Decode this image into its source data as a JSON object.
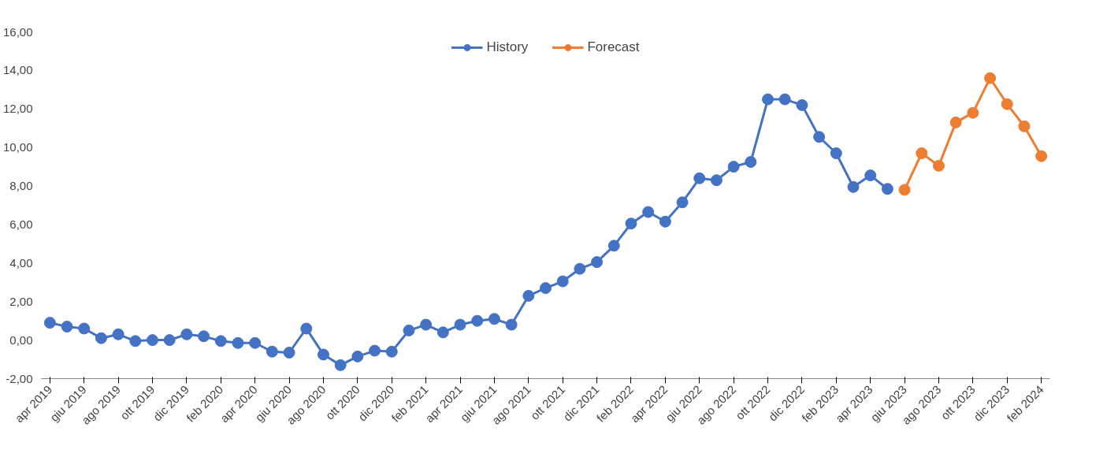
{
  "chart_data": {
    "type": "line",
    "categories": [
      "apr 2019",
      null,
      "giu 2019",
      null,
      "ago 2019",
      null,
      "ott 2019",
      null,
      "dic 2019",
      null,
      "feb 2020",
      null,
      "apr 2020",
      null,
      "giu 2020",
      null,
      "ago 2020",
      null,
      "ott 2020",
      null,
      "dic 2020",
      null,
      "feb 2021",
      null,
      "apr 2021",
      null,
      "giu 2021",
      null,
      "ago 2021",
      null,
      "ott 2021",
      null,
      "dic 2021",
      null,
      "feb 2022",
      null,
      "apr 2022",
      null,
      "giu 2022",
      null,
      "ago 2022",
      null,
      "ott 2022",
      null,
      "dic 2022",
      null,
      "feb 2023",
      null,
      "apr 2023",
      null,
      "giu 2023",
      null,
      "ago 2023",
      null,
      "ott 2023",
      null,
      "dic 2023",
      null,
      "feb 2024"
    ],
    "series": [
      {
        "name": "History",
        "color": "#4472c4",
        "values": [
          0.9,
          0.7,
          0.6,
          0.1,
          0.3,
          -0.05,
          0.0,
          0.0,
          0.3,
          0.2,
          -0.05,
          -0.15,
          -0.15,
          -0.6,
          -0.65,
          0.6,
          -0.75,
          -1.3,
          -0.85,
          -0.55,
          -0.6,
          0.5,
          0.8,
          0.4,
          0.8,
          1.0,
          1.1,
          0.8,
          2.3,
          2.7,
          3.05,
          3.7,
          4.05,
          4.9,
          6.05,
          6.65,
          6.15,
          7.15,
          8.4,
          8.3,
          9.0,
          9.25,
          12.5,
          12.5,
          12.2,
          10.55,
          9.7,
          7.95,
          8.55,
          7.85,
          null,
          null,
          null,
          null,
          null,
          null,
          null,
          null,
          null
        ]
      },
      {
        "name": "Forecast",
        "color": "#ed7d31",
        "values": [
          null,
          null,
          null,
          null,
          null,
          null,
          null,
          null,
          null,
          null,
          null,
          null,
          null,
          null,
          null,
          null,
          null,
          null,
          null,
          null,
          null,
          null,
          null,
          null,
          null,
          null,
          null,
          null,
          null,
          null,
          null,
          null,
          null,
          null,
          null,
          null,
          null,
          null,
          null,
          null,
          null,
          null,
          null,
          null,
          null,
          null,
          null,
          null,
          null,
          null,
          7.8,
          9.7,
          9.05,
          11.3,
          11.8,
          13.6,
          12.25,
          11.1,
          9.55
        ]
      }
    ],
    "ylim": [
      -2,
      16
    ],
    "yticks": [
      {
        "value": -2,
        "label": "-2,00"
      },
      {
        "value": 0,
        "label": "0,00"
      },
      {
        "value": 2,
        "label": "2,00"
      },
      {
        "value": 4,
        "label": "4,00"
      },
      {
        "value": 6,
        "label": "6,00"
      },
      {
        "value": 8,
        "label": "8,00"
      },
      {
        "value": 10,
        "label": "10,00"
      },
      {
        "value": 12,
        "label": "12,00"
      },
      {
        "value": 14,
        "label": "14,00"
      },
      {
        "value": 16,
        "label": "16,00"
      }
    ],
    "grid": false,
    "legend": "top",
    "marker": "circle",
    "line_style": "solid"
  }
}
